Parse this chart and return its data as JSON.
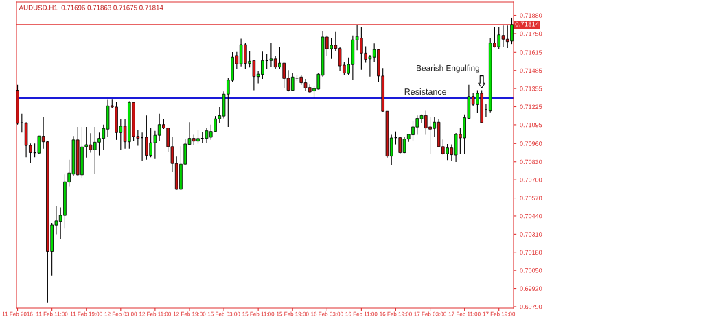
{
  "chart_data": {
    "type": "candlestick",
    "title": "AUDUSD.H1  0.71696 0.71863 0.71675 0.71814",
    "categories": [
      "11 Feb 2016",
      null,
      null,
      null,
      null,
      null,
      null,
      null,
      "11 Feb 11:00",
      null,
      null,
      null,
      null,
      null,
      null,
      null,
      "11 Feb 19:00",
      null,
      null,
      null,
      null,
      null,
      null,
      null,
      "12 Feb 03:00",
      null,
      null,
      null,
      null,
      null,
      null,
      null,
      "12 Feb 11:00",
      null,
      null,
      null,
      null,
      null,
      null,
      null,
      "12 Feb 19:00",
      null,
      null,
      null,
      null,
      null,
      null,
      null,
      "15 Feb 03:00",
      null,
      null,
      null,
      null,
      null,
      null,
      null,
      "15 Feb 11:00",
      null,
      null,
      null,
      null,
      null,
      null,
      null,
      "15 Feb 19:00",
      null,
      null,
      null,
      null,
      null,
      null,
      null,
      "16 Feb 03:00",
      null,
      null,
      null,
      null,
      null,
      null,
      null,
      "16 Feb 11:00",
      null,
      null,
      null,
      null,
      null,
      null,
      null,
      "16 Feb 19:00",
      null,
      null,
      null,
      null,
      null,
      null,
      null,
      "17 Feb 03:00",
      null,
      null,
      null,
      null,
      null,
      null,
      null,
      "17 Feb 11:00",
      null,
      null,
      null,
      null,
      null,
      null,
      null,
      "17 Feb 19:00",
      null,
      null,
      null
    ],
    "ohlc": [
      [
        0.71343,
        0.71381,
        0.71096,
        0.71105
      ],
      [
        0.71108,
        0.71175,
        0.71039,
        0.71108
      ],
      [
        0.71105,
        0.71113,
        0.70862,
        0.70946
      ],
      [
        0.70947,
        0.70961,
        0.70823,
        0.70895
      ],
      [
        0.70895,
        0.70961,
        0.70862,
        0.70895
      ],
      [
        0.70892,
        0.71016,
        0.70883,
        0.71015
      ],
      [
        0.71013,
        0.71149,
        0.70924,
        0.70973
      ],
      [
        0.70973,
        0.70982,
        0.69821,
        0.70186
      ],
      [
        0.70186,
        0.70391,
        0.70013,
        0.70376
      ],
      [
        0.70375,
        0.70514,
        0.70309,
        0.70406
      ],
      [
        0.70402,
        0.70501,
        0.70276,
        0.70445
      ],
      [
        0.70444,
        0.70739,
        0.7035,
        0.70685
      ],
      [
        0.70683,
        0.70845,
        0.70654,
        0.70749
      ],
      [
        0.70741,
        0.71015,
        0.70727,
        0.70987
      ],
      [
        0.70987,
        0.7108,
        0.70731,
        0.70736
      ],
      [
        0.70736,
        0.7108,
        0.70714,
        0.70936
      ],
      [
        0.70938,
        0.7108,
        0.70859,
        0.70952
      ],
      [
        0.70951,
        0.71034,
        0.70895,
        0.70916
      ],
      [
        0.70916,
        0.7108,
        0.70744,
        0.7097
      ],
      [
        0.7097,
        0.71039,
        0.70875,
        0.70998
      ],
      [
        0.70998,
        0.71096,
        0.70916,
        0.71069
      ],
      [
        0.71064,
        0.71274,
        0.7101,
        0.71231
      ],
      [
        0.71233,
        0.71276,
        0.71213,
        0.71223
      ],
      [
        0.71223,
        0.71261,
        0.70987,
        0.71039
      ],
      [
        0.71039,
        0.71138,
        0.70916,
        0.71085
      ],
      [
        0.71085,
        0.71138,
        0.70924,
        0.70973
      ],
      [
        0.70973,
        0.71264,
        0.70924,
        0.71256
      ],
      [
        0.71256,
        0.71256,
        0.70982,
        0.71011
      ],
      [
        0.71013,
        0.71056,
        0.70944,
        0.70998
      ],
      [
        0.71003,
        0.71039,
        0.70834,
        0.71003
      ],
      [
        0.71006,
        0.71162,
        0.70845,
        0.70875
      ],
      [
        0.70875,
        0.71072,
        0.70862,
        0.70966
      ],
      [
        0.70966,
        0.71051,
        0.7085,
        0.7102
      ],
      [
        0.7102,
        0.71175,
        0.70978,
        0.71096
      ],
      [
        0.71096,
        0.71134,
        0.71065,
        0.71072
      ],
      [
        0.71072,
        0.71072,
        0.709,
        0.70938
      ],
      [
        0.70938,
        0.7101,
        0.70757,
        0.70818
      ],
      [
        0.70818,
        0.70867,
        0.70629,
        0.70632
      ],
      [
        0.70632,
        0.70941,
        0.70629,
        0.70813
      ],
      [
        0.70813,
        0.70995,
        0.7081,
        0.70957
      ],
      [
        0.70954,
        0.71113,
        0.70949,
        0.70998
      ],
      [
        0.70998,
        0.71023,
        0.70949,
        0.70978
      ],
      [
        0.70978,
        0.71059,
        0.70958,
        0.70997
      ],
      [
        0.70998,
        0.71042,
        0.70966,
        0.70998
      ],
      [
        0.70998,
        0.71072,
        0.70966,
        0.71052
      ],
      [
        0.71006,
        0.71096,
        0.70987,
        0.71047
      ],
      [
        0.71047,
        0.71158,
        0.71042,
        0.71138
      ],
      [
        0.71138,
        0.71223,
        0.71105,
        0.71161
      ],
      [
        0.71158,
        0.71335,
        0.71141,
        0.71315
      ],
      [
        0.71315,
        0.71433,
        0.7108,
        0.71416
      ],
      [
        0.71414,
        0.71617,
        0.714,
        0.71581
      ],
      [
        0.71592,
        0.71618,
        0.71499,
        0.71532
      ],
      [
        0.71532,
        0.71712,
        0.71515,
        0.71671
      ],
      [
        0.71671,
        0.71686,
        0.71499,
        0.71535
      ],
      [
        0.71535,
        0.71622,
        0.71507,
        0.71551
      ],
      [
        0.71556,
        0.71556,
        0.71343,
        0.71441
      ],
      [
        0.71441,
        0.71479,
        0.71392,
        0.71458
      ],
      [
        0.71456,
        0.7162,
        0.71425,
        0.71556
      ],
      [
        0.71556,
        0.71606,
        0.71499,
        0.71556
      ],
      [
        0.71556,
        0.71684,
        0.7151,
        0.71568
      ],
      [
        0.71568,
        0.71589,
        0.71499,
        0.7151
      ],
      [
        0.7151,
        0.71651,
        0.71499,
        0.71537
      ],
      [
        0.71537,
        0.71537,
        0.71359,
        0.71428
      ],
      [
        0.7143,
        0.71487,
        0.71335,
        0.71343
      ],
      [
        0.71343,
        0.71469,
        0.71343,
        0.71438
      ],
      [
        0.7143,
        0.71453,
        0.71409,
        0.7143
      ],
      [
        0.71438,
        0.71453,
        0.71381,
        0.71397
      ],
      [
        0.71397,
        0.71425,
        0.71338,
        0.71359
      ],
      [
        0.71362,
        0.71384,
        0.71326,
        0.71331
      ],
      [
        0.71338,
        0.71376,
        0.71286,
        0.71355
      ],
      [
        0.71351,
        0.71469,
        0.71348,
        0.71458
      ],
      [
        0.7145,
        0.71769,
        0.71441,
        0.71725
      ],
      [
        0.71725,
        0.71736,
        0.71592,
        0.71641
      ],
      [
        0.71641,
        0.71715,
        0.71568,
        0.71666
      ],
      [
        0.71666,
        0.71766,
        0.71627,
        0.71643
      ],
      [
        0.71643,
        0.71655,
        0.71479,
        0.71518
      ],
      [
        0.71523,
        0.71548,
        0.7145,
        0.71466
      ],
      [
        0.71463,
        0.71578,
        0.7145,
        0.71528
      ],
      [
        0.71527,
        0.71736,
        0.7142,
        0.71704
      ],
      [
        0.71704,
        0.7181,
        0.7163,
        0.71729
      ],
      [
        0.71717,
        0.71794,
        0.7149,
        0.7161
      ],
      [
        0.7161,
        0.71658,
        0.7154,
        0.71564
      ],
      [
        0.71568,
        0.71597,
        0.71441,
        0.71584
      ],
      [
        0.71581,
        0.71679,
        0.71548,
        0.71635
      ],
      [
        0.71635,
        0.71638,
        0.71404,
        0.71445
      ],
      [
        0.71445,
        0.71502,
        0.7119,
        0.71192
      ],
      [
        0.71192,
        0.71192,
        0.70859,
        0.7087
      ],
      [
        0.7087,
        0.71023,
        0.70806,
        0.71001
      ],
      [
        0.71003,
        0.71047,
        0.70954,
        0.71003
      ],
      [
        0.71003,
        0.7101,
        0.70883,
        0.70895
      ],
      [
        0.70895,
        0.71006,
        0.70892,
        0.70993
      ],
      [
        0.70993,
        0.71031,
        0.70973,
        0.71026
      ],
      [
        0.71023,
        0.71121,
        0.70982,
        0.7108
      ],
      [
        0.71079,
        0.71162,
        0.71023,
        0.71141
      ],
      [
        0.71138,
        0.7117,
        0.71105,
        0.71162
      ],
      [
        0.71162,
        0.71195,
        0.71023,
        0.71072
      ],
      [
        0.7108,
        0.71154,
        0.70883,
        0.71064
      ],
      [
        0.71069,
        0.71151,
        0.71006,
        0.71113
      ],
      [
        0.71113,
        0.71138,
        0.70933,
        0.70938
      ],
      [
        0.70938,
        0.7099,
        0.7088,
        0.70887
      ],
      [
        0.70887,
        0.70957,
        0.70842,
        0.70929
      ],
      [
        0.70929,
        0.70954,
        0.70837,
        0.7088
      ],
      [
        0.70878,
        0.71036,
        0.70829,
        0.71026
      ],
      [
        0.71026,
        0.71072,
        0.70883,
        0.71001
      ],
      [
        0.71001,
        0.7117,
        0.70883,
        0.71146
      ],
      [
        0.71141,
        0.71381,
        0.71138,
        0.71298
      ],
      [
        0.71298,
        0.71321,
        0.71233,
        0.71241
      ],
      [
        0.71241,
        0.71343,
        0.71179,
        0.71321
      ],
      [
        0.71321,
        0.71343,
        0.71105,
        0.7111
      ],
      [
        0.71203,
        0.71244,
        0.71154,
        0.71203
      ],
      [
        0.71195,
        0.7172,
        0.71184,
        0.71682
      ],
      [
        0.71682,
        0.71794,
        0.7165,
        0.71655
      ],
      [
        0.71655,
        0.71794,
        0.71638,
        0.71741
      ],
      [
        0.71736,
        0.71807,
        0.71655,
        0.71709
      ],
      [
        0.71709,
        0.71807,
        0.71646,
        0.71692
      ],
      [
        0.71696,
        0.71863,
        0.71675,
        0.71814
      ]
    ],
    "colors": [
      "#cc1111",
      "#000000",
      "#cc1111",
      "#cc1111",
      "#000000",
      "#00e000",
      "#cc1111",
      "#cc1111",
      "#00e000",
      "#00e000",
      "#00e000",
      "#00e000",
      "#00e000",
      "#00e000",
      "#cc1111",
      "#00e000",
      "#00e000",
      "#cc1111",
      "#00e000",
      "#00e000",
      "#00e000",
      "#00e000",
      "#cc1111",
      "#cc1111",
      "#00e000",
      "#cc1111",
      "#00e000",
      "#cc1111",
      "#cc1111",
      "#000000",
      "#cc1111",
      "#00e000",
      "#00e000",
      "#00e000",
      "#cc1111",
      "#cc1111",
      "#cc1111",
      "#cc1111",
      "#00e000",
      "#00e000",
      "#00e000",
      "#cc1111",
      "#00e000",
      "#000000",
      "#00e000",
      "#00e000",
      "#00e000",
      "#00e000",
      "#00e000",
      "#00e000",
      "#00e000",
      "#cc1111",
      "#00e000",
      "#cc1111",
      "#00e000",
      "#cc1111",
      "#00e000",
      "#00e000",
      "#000000",
      "#00e000",
      "#cc1111",
      "#00e000",
      "#cc1111",
      "#cc1111",
      "#00e000",
      "#000000",
      "#cc1111",
      "#cc1111",
      "#cc1111",
      "#00e000",
      "#00e000",
      "#00e000",
      "#cc1111",
      "#00e000",
      "#cc1111",
      "#cc1111",
      "#cc1111",
      "#00e000",
      "#00e000",
      "#00e000",
      "#cc1111",
      "#cc1111",
      "#00e000",
      "#00e000",
      "#cc1111",
      "#cc1111",
      "#cc1111",
      "#00e000",
      "#000000",
      "#cc1111",
      "#00e000",
      "#00e000",
      "#00e000",
      "#00e000",
      "#00e000",
      "#cc1111",
      "#cc1111",
      "#00e000",
      "#cc1111",
      "#cc1111",
      "#00e000",
      "#cc1111",
      "#00e000",
      "#cc1111",
      "#00e000",
      "#00e000",
      "#cc1111",
      "#00e000",
      "#cc1111",
      "#000000",
      "#00e000",
      "#cc1111",
      "#00e000",
      "#cc1111",
      "#cc1111",
      "#00e000"
    ],
    "ylim": [
      0.6978,
      0.71976
    ],
    "yticks": [
      {
        "value": 0.7188,
        "label": "0.71880"
      },
      {
        "value": 0.7175,
        "label": "0.71750"
      },
      {
        "value": 0.71615,
        "label": "0.71615"
      },
      {
        "value": 0.71485,
        "label": "0.71485"
      },
      {
        "value": 0.71355,
        "label": "0.71355"
      },
      {
        "value": 0.71225,
        "label": "0.71225"
      },
      {
        "value": 0.71095,
        "label": "0.71095"
      },
      {
        "value": 0.7096,
        "label": "0.70960"
      },
      {
        "value": 0.7083,
        "label": "0.70830"
      },
      {
        "value": 0.707,
        "label": "0.70700"
      },
      {
        "value": 0.7057,
        "label": "0.70570"
      },
      {
        "value": 0.7044,
        "label": "0.70440"
      },
      {
        "value": 0.7031,
        "label": "0.70310"
      },
      {
        "value": 0.7018,
        "label": "0.70180"
      },
      {
        "value": 0.7005,
        "label": "0.70050"
      },
      {
        "value": 0.6992,
        "label": "0.69920"
      },
      {
        "value": 0.6979,
        "label": "0.69790"
      }
    ],
    "ref_lines": [
      {
        "axis": "y",
        "value": 0.71814,
        "label": "0.71814",
        "color": "#e03030"
      },
      {
        "axis": "y",
        "value": 0.71287,
        "label": "Resistance",
        "color": "#1a1ad8"
      }
    ],
    "annotations": [
      "Bearish Engulfing"
    ],
    "grid": false,
    "legend": false
  }
}
